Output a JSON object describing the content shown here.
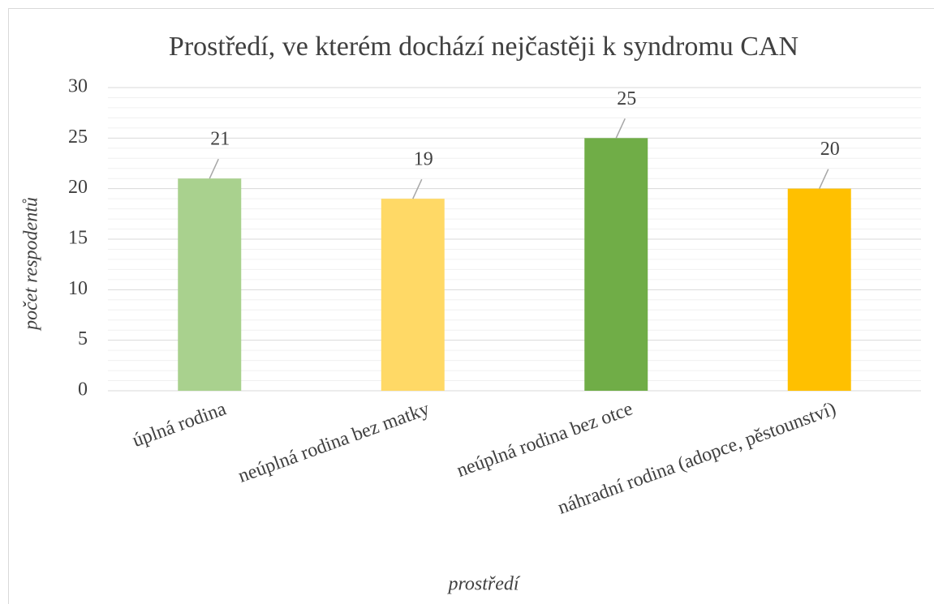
{
  "chart_data": {
    "type": "bar",
    "title": "Prostředí, ve kterém dochází nejčastěji k syndromu CAN",
    "x_label": "prostředí",
    "y_label": "počet respodentů",
    "categories": [
      "úplná rodina",
      "neúplná rodina bez matky",
      "neúplná rodina bez otce",
      "náhradní rodina (adopce, pěstounství)"
    ],
    "values": [
      21,
      19,
      25,
      20
    ],
    "colors": [
      "#a9d18e",
      "#ffd966",
      "#70ad47",
      "#ffc000"
    ],
    "ylim": [
      0,
      30
    ],
    "yticks": [
      0,
      5,
      10,
      15,
      20,
      25,
      30
    ],
    "minor_yticks": [
      1,
      2,
      3,
      4,
      6,
      7,
      8,
      9,
      11,
      12,
      13,
      14,
      16,
      17,
      18,
      19,
      21,
      22,
      23,
      24,
      26,
      27,
      28,
      29
    ],
    "grid": true
  }
}
